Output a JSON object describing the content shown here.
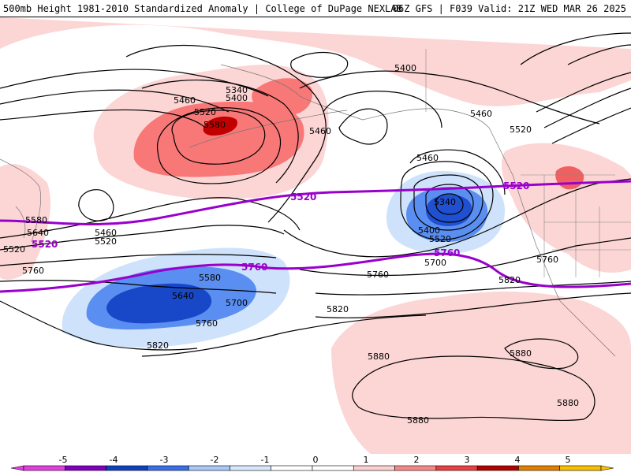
{
  "header": {
    "left_title": "500mb Height 1981-2010 Standardized Anomaly | College of DuPage NEXLAB",
    "right_title": "06Z GFS | F039 Valid: 21Z WED MAR 26 2025"
  },
  "contour_labels": [
    {
      "text": "5340"
    },
    {
      "text": "5400"
    },
    {
      "text": "5460"
    },
    {
      "text": "5520"
    },
    {
      "text": "5580"
    },
    {
      "text": "5400"
    },
    {
      "text": "5460"
    },
    {
      "text": "5460"
    },
    {
      "text": "5460"
    },
    {
      "text": "5520"
    },
    {
      "text": "5460"
    },
    {
      "text": "5520"
    },
    {
      "text": "5580"
    },
    {
      "text": "5640"
    },
    {
      "text": "5520"
    },
    {
      "text": "5760"
    },
    {
      "text": "5580"
    },
    {
      "text": "5640"
    },
    {
      "text": "5700"
    },
    {
      "text": "5760"
    },
    {
      "text": "5820"
    },
    {
      "text": "5340"
    },
    {
      "text": "5400"
    },
    {
      "text": "5520"
    },
    {
      "text": "5700"
    },
    {
      "text": "5760"
    },
    {
      "text": "5820"
    },
    {
      "text": "5880"
    },
    {
      "text": "5880"
    },
    {
      "text": "5880"
    },
    {
      "text": "5880"
    },
    {
      "text": "5760"
    },
    {
      "text": "5820"
    }
  ],
  "purple_labels": [
    {
      "text": "5520"
    },
    {
      "text": "5520"
    },
    {
      "text": "5520"
    },
    {
      "text": "5760"
    },
    {
      "text": "5760"
    }
  ],
  "colorbar": {
    "ticks": [
      "-5",
      "-4",
      "-3",
      "-2",
      "-1",
      "0",
      "1",
      "2",
      "3",
      "4",
      "5"
    ],
    "colors": [
      "#e040e0",
      "#8000c0",
      "#1040c0",
      "#3a6ee8",
      "#a8c8f8",
      "#d8e8fc",
      "#ffffff",
      "#ffffff",
      "#fcd0d0",
      "#f88888",
      "#e84040",
      "#b00000",
      "#e08000",
      "#f8c000"
    ]
  }
}
